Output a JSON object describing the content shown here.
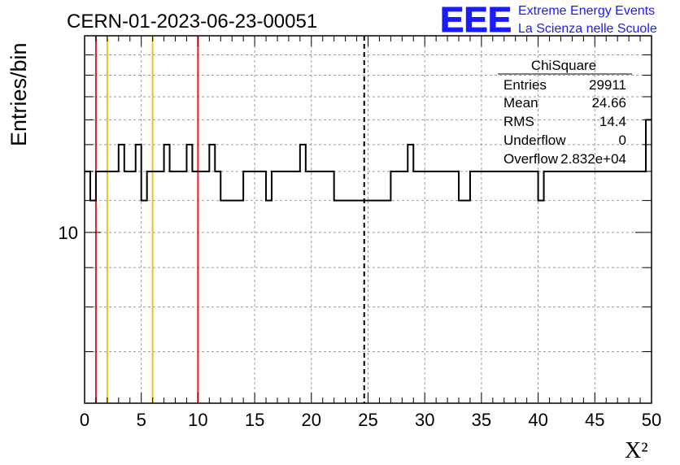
{
  "header": {
    "run_title": "CERN-01-2023-06-23-00051",
    "logo_letters": "EEE",
    "logo_line1": "Extreme Energy Events",
    "logo_line2": "La Scienza nelle Scuole"
  },
  "stats": {
    "title": "ChiSquare",
    "rows": [
      {
        "label": "Entries",
        "value": "29911"
      },
      {
        "label": "Mean",
        "value": "24.66"
      },
      {
        "label": "RMS",
        "value": "14.4"
      },
      {
        "label": "Underflow",
        "value": "0"
      },
      {
        "label": "Overflow",
        "value": "2.832e+04"
      }
    ]
  },
  "colors": {
    "histogram": "#000000",
    "red_marker": "#e02020",
    "yellow_marker": "#f0c020",
    "logo_blue": "#1a1aff",
    "grid": "#9a9a9a"
  },
  "chart_data": {
    "type": "histogram",
    "xlabel": "X²",
    "ylabel": "Entries/bin",
    "xlim": [
      0,
      50
    ],
    "ylim": [
      6,
      18
    ],
    "yscale": "log",
    "x_ticks": [
      0,
      5,
      10,
      15,
      20,
      25,
      30,
      35,
      40,
      45,
      50
    ],
    "y_tick_labels": [
      {
        "value": 10,
        "label": "10"
      }
    ],
    "grid": true,
    "bin_width": 0.5,
    "bin_start": 0,
    "values": [
      12,
      11,
      12,
      12,
      12,
      12,
      13,
      12,
      12,
      13,
      11,
      12,
      12,
      12,
      13,
      12,
      12,
      12,
      13,
      12,
      12,
      12,
      13,
      12,
      11,
      11,
      11,
      11,
      12,
      12,
      12,
      12,
      11,
      12,
      12,
      12,
      12,
      12,
      13,
      12,
      12,
      12,
      12,
      12,
      11,
      11,
      11,
      11,
      11,
      11,
      11,
      11,
      11,
      11,
      12,
      12,
      12,
      13,
      12,
      12,
      12,
      12,
      12,
      12,
      12,
      12,
      11,
      11,
      12,
      12,
      12,
      12,
      12,
      12,
      12,
      12,
      12,
      12,
      12,
      12,
      11,
      12,
      12,
      12,
      12,
      12,
      12,
      12,
      12,
      12,
      12,
      12,
      12,
      12,
      12,
      12,
      12,
      12,
      12,
      14
    ],
    "markers": [
      {
        "x": 1,
        "color": "red"
      },
      {
        "x": 2,
        "color": "yellow"
      },
      {
        "x": 6,
        "color": "yellow"
      },
      {
        "x": 10,
        "color": "red"
      },
      {
        "x": 24.66,
        "style": "dashed",
        "color": "black"
      }
    ]
  }
}
